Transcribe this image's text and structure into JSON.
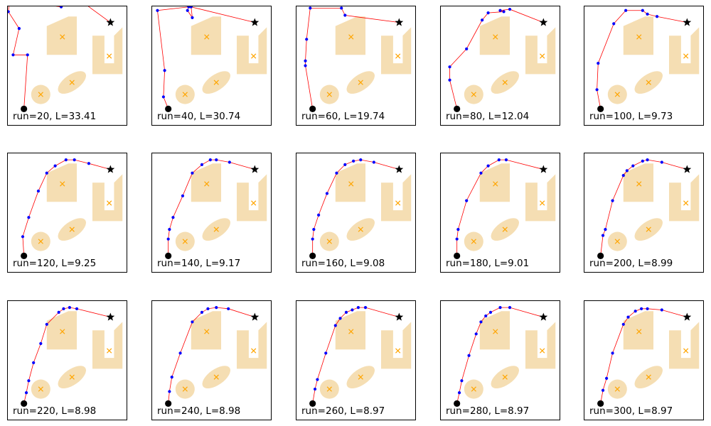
{
  "chart_data": {
    "type": "scatter",
    "layout": {
      "rows": 3,
      "cols": 5
    },
    "axes_visible": false,
    "xlim": [
      0,
      10
    ],
    "ylim": [
      0,
      10
    ],
    "start": {
      "x": 1.4,
      "y": 1.4
    },
    "goal": {
      "x": 8.6,
      "y": 8.6
    },
    "colors": {
      "obstacle": "#f5deb3",
      "center_marker": "#ffa500",
      "path_line": "#ff0000",
      "waypoint": "#0000ff",
      "endpoint": "#000000"
    },
    "obstacles": [
      {
        "shape": "circle",
        "cx": 2.8,
        "cy": 2.6,
        "r": 0.8
      },
      {
        "shape": "ellipse",
        "cx": 5.4,
        "cy": 3.6,
        "rx": 1.35,
        "ry": 0.65,
        "angle": -35
      },
      {
        "shape": "polygon",
        "cx": 4.6,
        "cy": 7.4,
        "points": [
          [
            3.3,
            5.9
          ],
          [
            5.8,
            5.9
          ],
          [
            5.8,
            9.1
          ],
          [
            5.1,
            9.1
          ],
          [
            3.3,
            8.3
          ]
        ]
      },
      {
        "shape": "polygon",
        "cx": 8.5,
        "cy": 5.8,
        "points": [
          [
            7.1,
            4.3
          ],
          [
            9.6,
            4.3
          ],
          [
            9.6,
            8.2
          ],
          [
            8.9,
            7.5
          ],
          [
            8.9,
            5.2
          ],
          [
            8.1,
            5.2
          ],
          [
            8.1,
            7.5
          ],
          [
            7.1,
            7.5
          ]
        ]
      }
    ],
    "panels": [
      {
        "caption": "run=20, L=33.41",
        "path": [
          [
            1.4,
            1.4
          ],
          [
            1.7,
            5.9
          ],
          [
            0.5,
            5.9
          ],
          [
            1.0,
            8.1
          ],
          [
            0.1,
            9.5
          ],
          [
            0.2,
            10.5
          ],
          [
            4.5,
            9.9
          ],
          [
            6.0,
            10.5
          ],
          [
            8.6,
            8.6
          ]
        ]
      },
      {
        "caption": "run=40, L=30.74",
        "path": [
          [
            1.4,
            1.4
          ],
          [
            1.0,
            2.4
          ],
          [
            1.1,
            4.6
          ],
          [
            0.5,
            9.6
          ],
          [
            3.1,
            9.9
          ],
          [
            3.0,
            9.6
          ],
          [
            3.4,
            9.0
          ],
          [
            3.3,
            9.9
          ],
          [
            8.6,
            8.6
          ]
        ]
      },
      {
        "caption": "run=60, L=19.74",
        "path": [
          [
            1.4,
            1.4
          ],
          [
            0.8,
            5.0
          ],
          [
            0.8,
            5.4
          ],
          [
            0.9,
            7.2
          ],
          [
            1.2,
            9.8
          ],
          [
            3.8,
            9.8
          ],
          [
            4.1,
            9.2
          ],
          [
            8.6,
            8.6
          ]
        ]
      },
      {
        "caption": "run=80, L=12.04",
        "path": [
          [
            1.4,
            1.4
          ],
          [
            0.8,
            3.8
          ],
          [
            0.8,
            4.9
          ],
          [
            2.2,
            6.4
          ],
          [
            3.5,
            8.8
          ],
          [
            4.0,
            9.4
          ],
          [
            5.3,
            9.5
          ],
          [
            5.0,
            9.6
          ],
          [
            5.8,
            9.7
          ],
          [
            8.6,
            8.6
          ]
        ]
      },
      {
        "caption": "run=100, L=9.73",
        "path": [
          [
            1.4,
            1.4
          ],
          [
            1.1,
            3.0
          ],
          [
            1.2,
            5.2
          ],
          [
            2.5,
            8.5
          ],
          [
            3.5,
            9.6
          ],
          [
            4.9,
            9.6
          ],
          [
            5.3,
            9.3
          ],
          [
            6.1,
            9.1
          ],
          [
            8.6,
            8.6
          ]
        ]
      },
      {
        "caption": "run=120, L=9.25",
        "path": [
          [
            1.4,
            1.4
          ],
          [
            1.3,
            3.0
          ],
          [
            1.8,
            4.6
          ],
          [
            2.6,
            6.8
          ],
          [
            3.3,
            8.3
          ],
          [
            4.0,
            8.9
          ],
          [
            4.9,
            9.4
          ],
          [
            5.6,
            9.4
          ],
          [
            6.8,
            9.1
          ],
          [
            8.6,
            8.6
          ]
        ]
      },
      {
        "caption": "run=140, L=9.17",
        "path": [
          [
            1.4,
            1.4
          ],
          [
            1.4,
            2.8
          ],
          [
            1.5,
            3.6
          ],
          [
            1.8,
            4.6
          ],
          [
            2.6,
            6.4
          ],
          [
            3.4,
            8.3
          ],
          [
            4.2,
            9.0
          ],
          [
            4.9,
            9.4
          ],
          [
            5.4,
            9.4
          ],
          [
            6.5,
            9.2
          ],
          [
            8.6,
            8.6
          ]
        ]
      },
      {
        "caption": "run=160, L=9.08",
        "path": [
          [
            1.4,
            1.4
          ],
          [
            1.4,
            2.8
          ],
          [
            1.5,
            3.6
          ],
          [
            1.9,
            4.8
          ],
          [
            2.6,
            6.6
          ],
          [
            3.4,
            8.3
          ],
          [
            4.1,
            9.0
          ],
          [
            4.8,
            9.3
          ],
          [
            5.4,
            9.4
          ],
          [
            6.5,
            9.2
          ],
          [
            8.6,
            8.6
          ]
        ]
      },
      {
        "caption": "run=180, L=9.01",
        "path": [
          [
            1.4,
            1.4
          ],
          [
            1.4,
            2.8
          ],
          [
            1.5,
            3.6
          ],
          [
            2.2,
            6.0
          ],
          [
            3.4,
            8.3
          ],
          [
            4.0,
            8.9
          ],
          [
            4.9,
            9.4
          ],
          [
            5.5,
            9.4
          ],
          [
            8.6,
            8.6
          ]
        ]
      },
      {
        "caption": "run=200, L=8.99",
        "path": [
          [
            1.4,
            1.4
          ],
          [
            1.6,
            3.1
          ],
          [
            1.8,
            3.6
          ],
          [
            2.4,
            6.0
          ],
          [
            3.3,
            8.1
          ],
          [
            3.6,
            8.5
          ],
          [
            4.1,
            8.9
          ],
          [
            4.9,
            9.3
          ],
          [
            5.3,
            9.4
          ],
          [
            6.5,
            9.2
          ],
          [
            8.6,
            8.6
          ]
        ]
      },
      {
        "caption": "run=220, L=8.98",
        "path": [
          [
            1.4,
            1.4
          ],
          [
            1.6,
            2.3
          ],
          [
            1.8,
            3.3
          ],
          [
            2.2,
            4.8
          ],
          [
            2.8,
            6.4
          ],
          [
            3.3,
            8.0
          ],
          [
            4.3,
            9.0
          ],
          [
            4.7,
            9.3
          ],
          [
            5.2,
            9.4
          ],
          [
            5.8,
            9.3
          ],
          [
            8.6,
            8.6
          ]
        ]
      },
      {
        "caption": "run=240, L=8.98",
        "path": [
          [
            1.4,
            1.4
          ],
          [
            1.5,
            2.4
          ],
          [
            1.7,
            3.6
          ],
          [
            2.4,
            5.6
          ],
          [
            3.4,
            8.2
          ],
          [
            4.2,
            9.0
          ],
          [
            4.7,
            9.3
          ],
          [
            5.4,
            9.4
          ],
          [
            6.4,
            9.3
          ],
          [
            8.6,
            8.6
          ]
        ]
      },
      {
        "caption": "run=260, L=8.97",
        "path": [
          [
            1.4,
            1.4
          ],
          [
            1.6,
            2.6
          ],
          [
            1.8,
            3.4
          ],
          [
            2.5,
            5.6
          ],
          [
            3.3,
            7.9
          ],
          [
            3.7,
            8.5
          ],
          [
            4.2,
            9.0
          ],
          [
            4.7,
            9.2
          ],
          [
            5.2,
            9.4
          ],
          [
            5.8,
            9.4
          ],
          [
            8.6,
            8.6
          ]
        ]
      },
      {
        "caption": "run=280, L=8.97",
        "path": [
          [
            1.4,
            1.4
          ],
          [
            1.6,
            2.3
          ],
          [
            1.8,
            3.3
          ],
          [
            2.4,
            5.4
          ],
          [
            3.0,
            7.2
          ],
          [
            3.4,
            8.2
          ],
          [
            3.8,
            8.7
          ],
          [
            4.2,
            9.0
          ],
          [
            5.0,
            9.4
          ],
          [
            5.8,
            9.4
          ],
          [
            8.6,
            8.6
          ]
        ]
      },
      {
        "caption": "run=300, L=8.97",
        "path": [
          [
            1.4,
            1.4
          ],
          [
            1.6,
            2.5
          ],
          [
            1.9,
            3.5
          ],
          [
            2.4,
            5.6
          ],
          [
            3.3,
            8.0
          ],
          [
            3.7,
            8.6
          ],
          [
            4.3,
            9.1
          ],
          [
            4.8,
            9.3
          ],
          [
            5.3,
            9.3
          ],
          [
            6.5,
            9.2
          ],
          [
            8.6,
            8.6
          ]
        ]
      }
    ]
  }
}
